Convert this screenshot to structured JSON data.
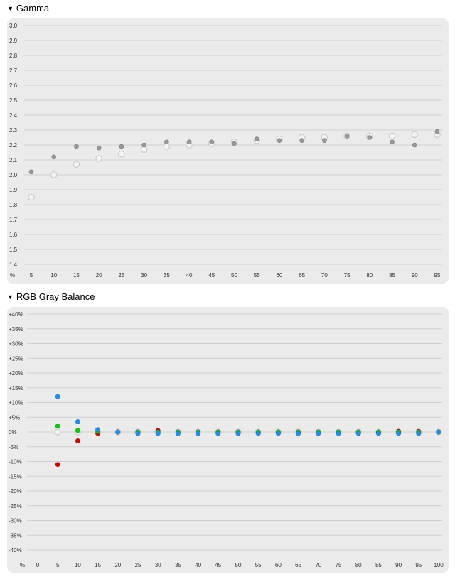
{
  "sections": {
    "gamma_title": "Gamma",
    "rgb_title": "RGB Gray Balance",
    "toggle_icon": "triangle-down-icon"
  },
  "colors": {
    "panel_bg": "#ebebeb",
    "grid": "#d0d0d0",
    "gamma_measured": "#999999",
    "gamma_target": "#cfcfcf",
    "red": "#cc0000",
    "green": "#00cc00",
    "blue": "#1e8ff0",
    "neutral": "#cfcfcf"
  },
  "chart_data": [
    {
      "type": "scatter",
      "title": "Gamma",
      "axis_unit_label": "%",
      "ylim": [
        1.4,
        3.0
      ],
      "yticks": [
        "1.4",
        "1.5",
        "1.6",
        "1.7",
        "1.8",
        "1.9",
        "2.0",
        "2.1",
        "2.2",
        "2.3",
        "2.4",
        "2.5",
        "2.6",
        "2.7",
        "2.8",
        "2.9",
        "3.0"
      ],
      "categories": [
        "5",
        "10",
        "15",
        "20",
        "25",
        "30",
        "35",
        "40",
        "45",
        "50",
        "55",
        "60",
        "65",
        "70",
        "75",
        "80",
        "85",
        "90",
        "95"
      ],
      "grid": true,
      "series": [
        {
          "key": "measured",
          "marker": "filled-small",
          "values": [
            2.02,
            2.12,
            2.19,
            2.18,
            2.19,
            2.2,
            2.22,
            2.22,
            2.22,
            2.21,
            2.24,
            2.23,
            2.23,
            2.23,
            2.26,
            2.25,
            2.22,
            2.2,
            2.29
          ]
        },
        {
          "key": "target",
          "marker": "hollow-large",
          "values": [
            1.85,
            2.0,
            2.07,
            2.11,
            2.14,
            2.17,
            2.19,
            2.2,
            2.21,
            2.22,
            2.23,
            2.24,
            2.25,
            2.25,
            2.26,
            2.26,
            2.26,
            2.27,
            2.27
          ]
        }
      ]
    },
    {
      "type": "scatter",
      "title": "RGB Gray Balance",
      "axis_unit_label": "%",
      "ylim": [
        -40,
        40
      ],
      "yticks": [
        "+40%",
        "+35%",
        "+30%",
        "+25%",
        "+20%",
        "+15%",
        "+10%",
        "+5%",
        "0%",
        "-5%",
        "-10%",
        "-15%",
        "-20%",
        "-25%",
        "-30%",
        "-35%",
        "-40%"
      ],
      "categories": [
        "0",
        "5",
        "10",
        "15",
        "20",
        "25",
        "30",
        "35",
        "40",
        "45",
        "50",
        "55",
        "60",
        "65",
        "70",
        "75",
        "80",
        "85",
        "90",
        "95",
        "100"
      ],
      "grid": true,
      "series": [
        {
          "key": "neutral",
          "color": "neutral",
          "hollow": true,
          "values": [
            null,
            0,
            0,
            0,
            0,
            0,
            0,
            0,
            0,
            0,
            0,
            0,
            0,
            0,
            0,
            0,
            0,
            0,
            0,
            0,
            0
          ]
        },
        {
          "key": "red",
          "color": "red",
          "values": [
            null,
            -11,
            -3,
            -0.5,
            0,
            0,
            0.5,
            0,
            0,
            0,
            0,
            0,
            0,
            0,
            0,
            0,
            0,
            0,
            0.2,
            0.2,
            0
          ]
        },
        {
          "key": "green",
          "color": "green",
          "values": [
            null,
            2,
            0.5,
            0.2,
            0,
            0,
            0,
            0,
            0,
            0,
            0,
            0,
            0,
            0,
            0,
            0,
            0,
            0,
            0,
            0,
            0
          ]
        },
        {
          "key": "blue",
          "color": "blue",
          "values": [
            null,
            12,
            3.5,
            0.8,
            0,
            -0.5,
            -0.5,
            -0.5,
            -0.5,
            -0.5,
            -0.5,
            -0.5,
            -0.5,
            -0.5,
            -0.5,
            -0.5,
            -0.5,
            -0.5,
            -0.5,
            -0.5,
            0
          ]
        }
      ]
    }
  ]
}
